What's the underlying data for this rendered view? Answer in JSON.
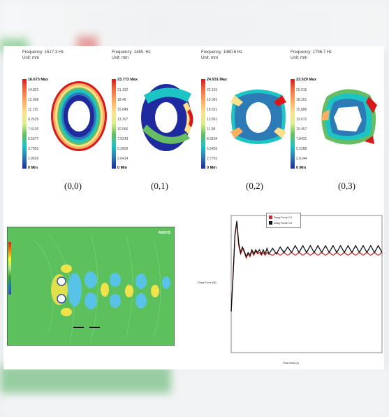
{
  "modes": [
    {
      "frequency": "Frequency: 1517.3 Hz",
      "unit": "Unit: mm",
      "legend": [
        "16.673 Max",
        "14.821",
        "12.968",
        "11.115",
        "9.2629",
        "7.4103",
        "5.5577",
        "3.7052",
        "1.8526",
        "0 Min"
      ],
      "label": "(0,0)"
    },
    {
      "frequency": "Frequency: 1480. Hz",
      "unit": "Unit: mm",
      "legend": [
        "23.773 Max",
        "21.132",
        "18.49",
        "15.849",
        "13.207",
        "10.566",
        "7.9243",
        "5.2829",
        "2.6414",
        "0 Min"
      ],
      "label": "(0,1)"
    },
    {
      "frequency": "Frequency: 1480.8 Hz",
      "unit": "Unit: mm",
      "legend": [
        "24.931 Max",
        "22.161",
        "19.391",
        "16.621",
        "13.851",
        "11.08",
        "8.3104",
        "5.5403",
        "2.7701",
        "0 Min"
      ],
      "label": "(0,2)"
    },
    {
      "frequency": "Frequency: 1796.7 Hz",
      "unit": "Unit: mm",
      "legend": [
        "23.529 Max",
        "20.915",
        "18.301",
        "15.686",
        "13.072",
        "10.457",
        "7.8431",
        "5.2288",
        "2.6144",
        "0 Min"
      ],
      "label": "(0,3)"
    }
  ],
  "cfd": {
    "brand": "ANSYS",
    "colors": {
      "background": "#5cc15c",
      "positive": "#f0e24a",
      "negative": "#58c3e6"
    }
  },
  "chart_data": {
    "type": "line",
    "xlabel": "Flow time (s)",
    "ylabel": "Drag Force (N)",
    "xlim": [
      0,
      16
    ],
    "series": [
      {
        "name": "Drag Force C1",
        "color": "#d62728",
        "x": [
          0,
          0.2,
          0.4,
          0.6,
          0.8,
          1.0,
          1.2,
          1.4,
          1.6,
          1.8,
          2.0,
          2.2,
          2.4,
          2.6,
          2.8,
          3.0,
          3.2,
          3.4,
          3.6,
          3.8,
          4.0,
          4.4,
          4.8,
          5.2,
          5.6,
          6.0,
          6.4,
          6.8,
          7.2,
          7.6,
          8.0,
          8.4,
          8.8,
          9.2,
          9.6,
          10.0,
          10.4,
          10.8,
          11.2,
          11.6,
          12.0,
          12.4,
          12.8,
          13.2,
          13.6,
          14.0,
          14.4,
          14.8,
          15.2,
          15.6,
          16.0
        ],
        "y": [
          0.3,
          0.55,
          0.85,
          0.95,
          0.78,
          0.72,
          0.76,
          0.73,
          0.69,
          0.72,
          0.7,
          0.74,
          0.71,
          0.74,
          0.72,
          0.73,
          0.71,
          0.73,
          0.71,
          0.73,
          0.72,
          0.71,
          0.73,
          0.71,
          0.73,
          0.71,
          0.73,
          0.71,
          0.73,
          0.71,
          0.73,
          0.71,
          0.73,
          0.71,
          0.73,
          0.71,
          0.73,
          0.71,
          0.73,
          0.71,
          0.73,
          0.71,
          0.73,
          0.71,
          0.73,
          0.71,
          0.73,
          0.71,
          0.73,
          0.71,
          0.73
        ]
      },
      {
        "name": "Drag Force C2",
        "color": "#111111",
        "x": [
          0,
          0.2,
          0.4,
          0.6,
          0.8,
          1.0,
          1.2,
          1.4,
          1.6,
          1.8,
          2.0,
          2.2,
          2.4,
          2.6,
          2.8,
          3.0,
          3.2,
          3.4,
          3.6,
          3.8,
          4.0,
          4.4,
          4.8,
          5.2,
          5.6,
          6.0,
          6.4,
          6.8,
          7.2,
          7.6,
          8.0,
          8.4,
          8.8,
          9.2,
          9.6,
          10.0,
          10.4,
          10.8,
          11.2,
          11.6,
          12.0,
          12.4,
          12.8,
          13.2,
          13.6,
          14.0,
          14.4,
          14.8,
          15.2,
          15.6,
          16.0
        ],
        "y": [
          0.3,
          0.56,
          0.86,
          0.96,
          0.8,
          0.73,
          0.77,
          0.74,
          0.7,
          0.73,
          0.71,
          0.75,
          0.72,
          0.75,
          0.73,
          0.75,
          0.72,
          0.75,
          0.72,
          0.76,
          0.72,
          0.76,
          0.72,
          0.77,
          0.73,
          0.77,
          0.73,
          0.78,
          0.73,
          0.78,
          0.73,
          0.78,
          0.73,
          0.78,
          0.73,
          0.78,
          0.73,
          0.78,
          0.73,
          0.78,
          0.73,
          0.78,
          0.73,
          0.78,
          0.73,
          0.78,
          0.73,
          0.78,
          0.73,
          0.78,
          0.73
        ]
      }
    ],
    "ylim": [
      0,
      1
    ]
  }
}
